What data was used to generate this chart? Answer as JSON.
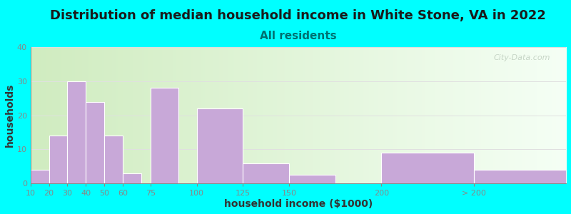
{
  "title": "Distribution of median household income in White Stone, VA in 2022",
  "subtitle": "All residents",
  "xlabel": "household income ($1000)",
  "ylabel": "households",
  "background_outer": "#00FFFF",
  "bar_color": "#c8a8d8",
  "bar_edge_color": "#ffffff",
  "ylim": [
    0,
    40
  ],
  "yticks": [
    0,
    10,
    20,
    30,
    40
  ],
  "bar_labels": [
    "10",
    "20",
    "30",
    "40",
    "50",
    "60",
    "75",
    "100",
    "125",
    "150",
    "200",
    "> 200"
  ],
  "bar_values": [
    4,
    14,
    30,
    24,
    14,
    3,
    28,
    22,
    6,
    2.5,
    9,
    4
  ],
  "bar_widths_relative": [
    10,
    10,
    10,
    10,
    10,
    10,
    15,
    25,
    25,
    25,
    50,
    50
  ],
  "bar_left_edges": [
    10,
    20,
    30,
    40,
    50,
    60,
    75,
    100,
    125,
    150,
    200,
    250
  ],
  "tick_positions": [
    10,
    20,
    30,
    40,
    50,
    60,
    75,
    100,
    125,
    150,
    200,
    250
  ],
  "xlim_left": 10,
  "xlim_right": 300,
  "title_fontsize": 13,
  "subtitle_fontsize": 11,
  "axis_label_fontsize": 10,
  "tick_fontsize": 8,
  "bg_left_color": "#d0ecc0",
  "bg_right_color": "#f5fff5",
  "watermark_text": "City-Data.com",
  "subtitle_color": "#007070",
  "title_color": "#1a1a1a",
  "grid_color": "#e0e0e0",
  "axis_color": "#888888"
}
